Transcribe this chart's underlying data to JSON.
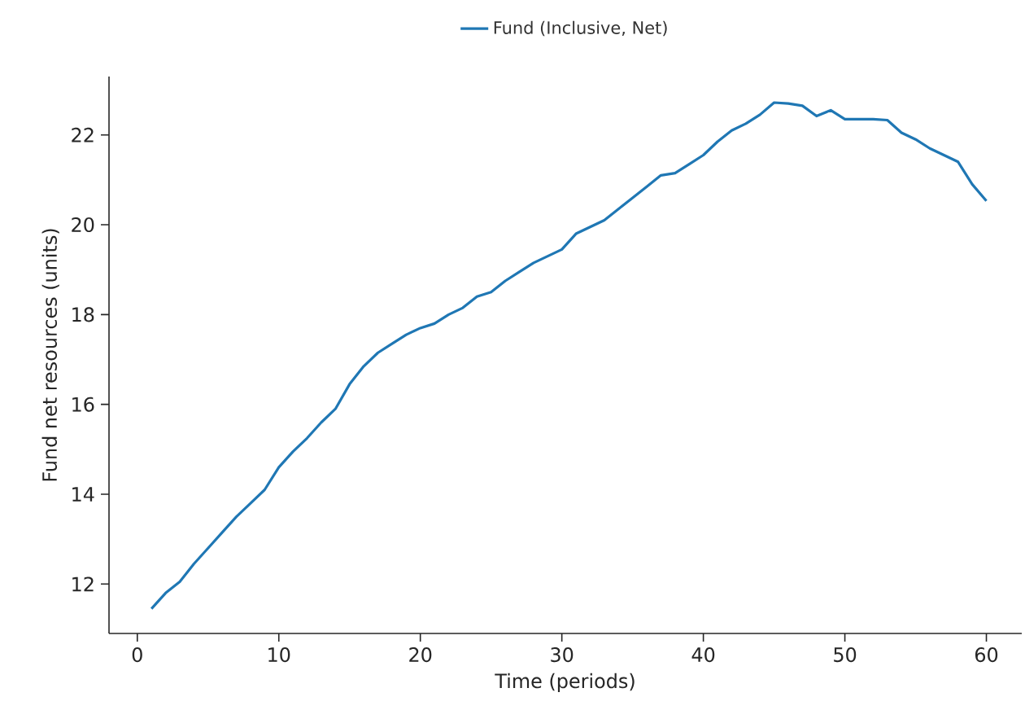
{
  "chart_data": {
    "type": "line",
    "xlabel": "Time (periods)",
    "ylabel": "Fund net resources (units)",
    "x": [
      1,
      2,
      3,
      4,
      5,
      6,
      7,
      8,
      9,
      10,
      11,
      12,
      13,
      14,
      15,
      16,
      17,
      18,
      19,
      20,
      21,
      22,
      23,
      24,
      25,
      26,
      27,
      28,
      29,
      30,
      31,
      32,
      33,
      34,
      35,
      36,
      37,
      38,
      39,
      40,
      41,
      42,
      43,
      44,
      45,
      46,
      47,
      48,
      49,
      50,
      51,
      52,
      53,
      54,
      55,
      56,
      57,
      58,
      59,
      60
    ],
    "series": [
      {
        "name": "Fund (Inclusive, Net)",
        "color": "#1f77b4",
        "values": [
          11.45,
          11.8,
          12.05,
          12.45,
          12.8,
          13.15,
          13.5,
          13.8,
          14.1,
          14.6,
          14.95,
          15.25,
          15.6,
          15.9,
          16.45,
          16.85,
          17.15,
          17.35,
          17.55,
          17.7,
          17.8,
          18.0,
          18.15,
          18.4,
          18.5,
          18.75,
          18.95,
          19.15,
          19.3,
          19.45,
          19.8,
          19.95,
          20.1,
          20.35,
          20.6,
          20.85,
          21.1,
          21.15,
          21.35,
          21.55,
          21.85,
          22.1,
          22.25,
          22.45,
          22.72,
          22.7,
          22.65,
          22.42,
          22.55,
          22.35,
          22.35,
          22.35,
          22.33,
          22.05,
          21.9,
          21.7,
          21.55,
          21.4,
          20.9,
          20.53
        ]
      }
    ],
    "xlim": [
      -2,
      62.5
    ],
    "ylim": [
      10.9,
      23.3
    ],
    "xticks": [
      0,
      10,
      20,
      30,
      40,
      50,
      60
    ],
    "yticks": [
      12,
      14,
      16,
      18,
      20,
      22
    ],
    "grid": false,
    "legend": "top",
    "marker": "none",
    "line_style": "solid"
  }
}
